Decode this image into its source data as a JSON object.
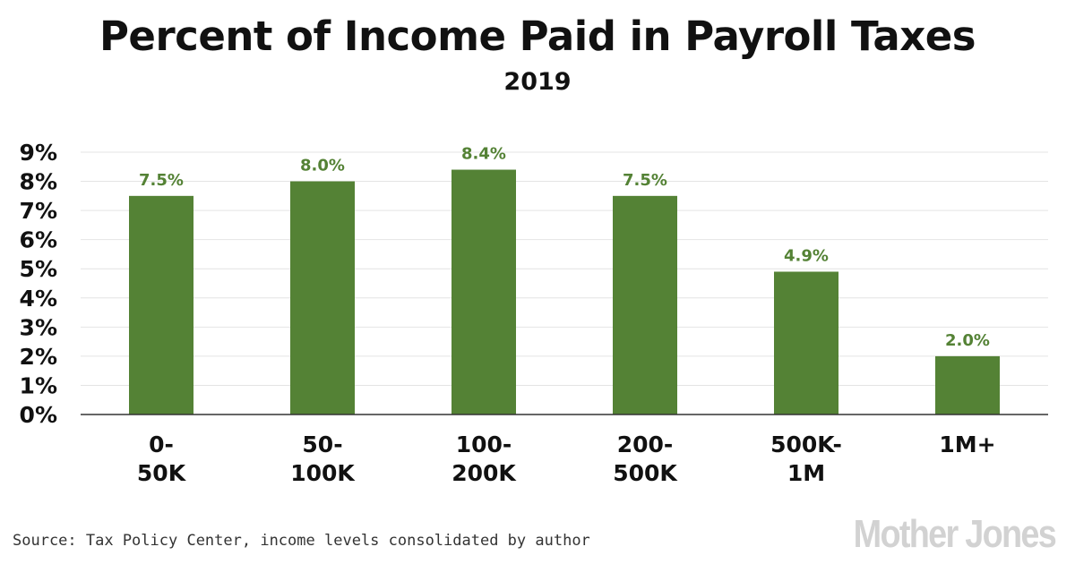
{
  "title": "Percent of Income Paid in Payroll Taxes",
  "subtitle": "2019",
  "source": "Source: Tax Policy Center, income levels consolidated by author",
  "logo": "Mother Jones",
  "colors": {
    "bar": "#548235",
    "label": "#548235",
    "grid": "#e4e4e4",
    "axis": "#333333"
  },
  "chart_data": {
    "type": "bar",
    "title": "Percent of Income Paid in Payroll Taxes",
    "subtitle": "2019",
    "xlabel": "",
    "ylabel": "",
    "categories": [
      [
        "0-",
        "50K"
      ],
      [
        "50-",
        "100K"
      ],
      [
        "100-",
        "200K"
      ],
      [
        "200-",
        "500K"
      ],
      [
        "500K-",
        "1M"
      ],
      [
        "1M+"
      ]
    ],
    "values": [
      7.5,
      8.0,
      8.4,
      7.5,
      4.9,
      2.0
    ],
    "data_labels": [
      "7.5%",
      "8.0%",
      "8.4%",
      "7.5%",
      "4.9%",
      "2.0%"
    ],
    "ylim": [
      0,
      9
    ],
    "yticks": [
      0,
      1,
      2,
      3,
      4,
      5,
      6,
      7,
      8,
      9
    ],
    "ytick_labels": [
      "0%",
      "1%",
      "2%",
      "3%",
      "4%",
      "5%",
      "6%",
      "7%",
      "8%",
      "9%"
    ],
    "grid": true,
    "legend": "none"
  }
}
